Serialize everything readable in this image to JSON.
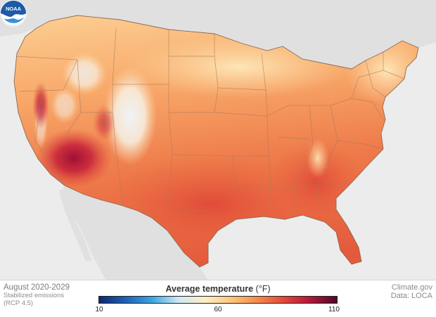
{
  "map": {
    "type": "choropleth",
    "region": "Contiguous United States",
    "value_pattern": "Hottest in the desert southwest (Arizona, southeast California); warm reds across Texas, the Gulf Coast and Southeast; cooler yellows/light oranges across the northern tier; coolest whites/light blues in the Rocky Mountain high country (Colorado, Wyoming, Idaho).",
    "colors": {
      "ocean": "#ececec",
      "neighbors": "#e0e0e0",
      "state_borders": "#a07050"
    }
  },
  "legend": {
    "title": "Average temperature",
    "unit": "(°F)",
    "min": 10,
    "mid": 60,
    "max": 110,
    "min_label": "10",
    "mid_label": "60",
    "max_label": "110",
    "gradient_colors": [
      "#0b2a6e",
      "#1f5fb5",
      "#39a6e0",
      "#cfe9f5",
      "#fbefc8",
      "#fbc77e",
      "#f28a4e",
      "#e2463a",
      "#b0173a",
      "#4c0a28"
    ]
  },
  "caption": {
    "period": "August 2020-2029",
    "scenario_line1": "Stabilized emissions",
    "scenario_line2": "(RCP 4.5)"
  },
  "credits": {
    "source": "Climate.gov",
    "data": "Data: LOCA"
  },
  "logo": {
    "text": "NOAA",
    "colors": {
      "outer": "#1d5aa8",
      "inner": "#ffffff",
      "wave": "#3a8fd6"
    }
  }
}
